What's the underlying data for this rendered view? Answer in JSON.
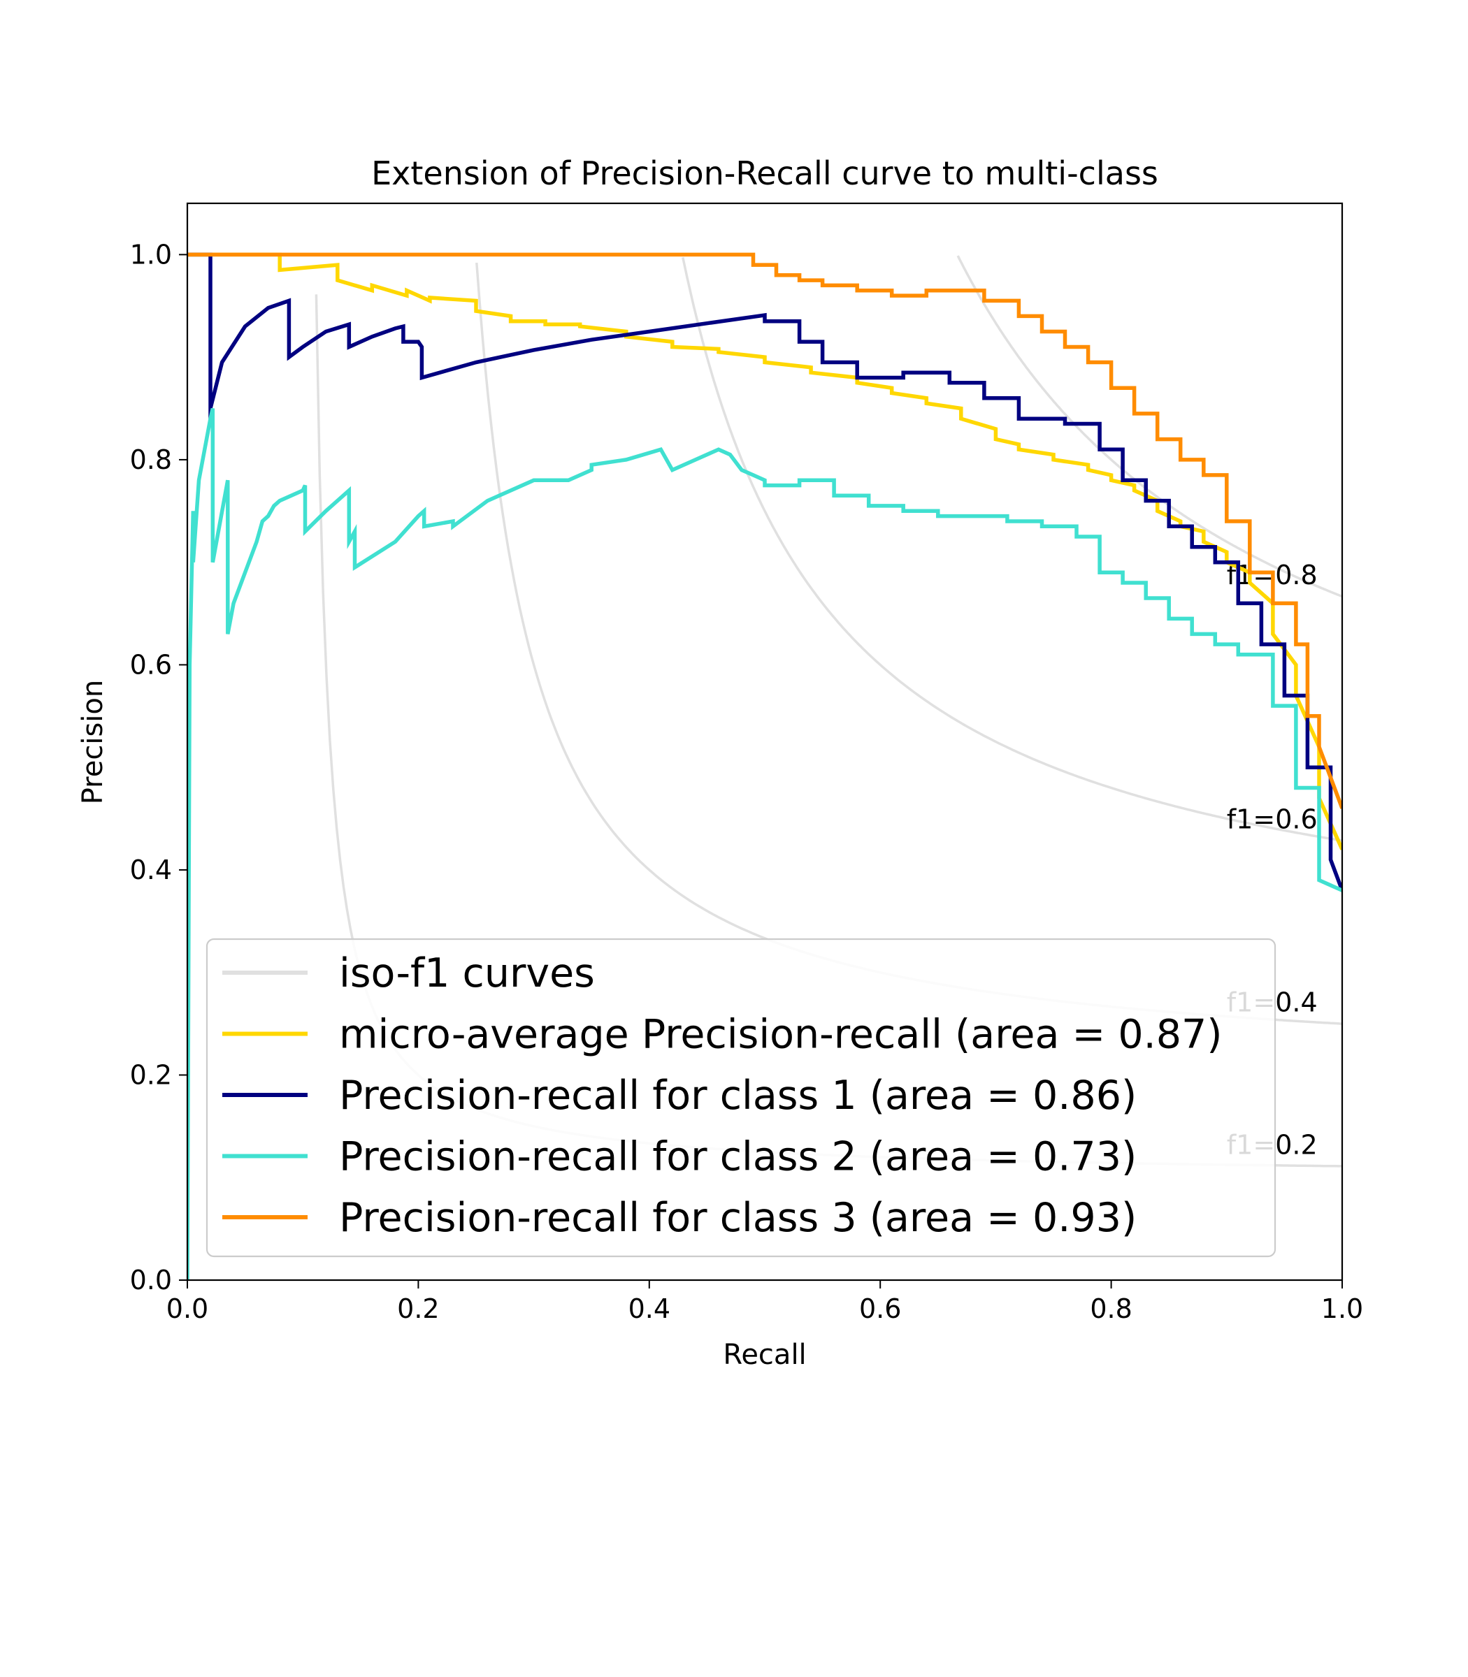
{
  "chart_data": {
    "type": "line",
    "title": "Extension of Precision-Recall curve to multi-class",
    "xlabel": "Recall",
    "ylabel": "Precision",
    "xlim": [
      0.0,
      1.0
    ],
    "ylim": [
      0.0,
      1.05
    ],
    "xticks": [
      "0.0",
      "0.2",
      "0.4",
      "0.6",
      "0.8",
      "1.0"
    ],
    "yticks": [
      "0.0",
      "0.2",
      "0.4",
      "0.6",
      "0.8",
      "1.0"
    ],
    "grid": false,
    "legend_position": "lower-left",
    "iso_f1": {
      "legend_label": "iso-f1 curves",
      "color": "#e0e0e0",
      "values": [
        0.2,
        0.4,
        0.6,
        0.8
      ],
      "labels": [
        "f1=0.2",
        "f1=0.4",
        "f1=0.6",
        "f1=0.8"
      ]
    },
    "series": [
      {
        "name": "micro-average Precision-recall (area = 0.87)",
        "color": "#ffd700",
        "x": [
          0.0,
          0.08,
          0.08,
          0.13,
          0.13,
          0.16,
          0.16,
          0.19,
          0.19,
          0.21,
          0.21,
          0.25,
          0.25,
          0.28,
          0.28,
          0.31,
          0.31,
          0.34,
          0.34,
          0.38,
          0.38,
          0.42,
          0.42,
          0.46,
          0.46,
          0.5,
          0.5,
          0.54,
          0.54,
          0.58,
          0.58,
          0.61,
          0.61,
          0.64,
          0.64,
          0.67,
          0.67,
          0.7,
          0.7,
          0.72,
          0.72,
          0.75,
          0.75,
          0.78,
          0.78,
          0.8,
          0.8,
          0.82,
          0.82,
          0.84,
          0.84,
          0.86,
          0.86,
          0.88,
          0.88,
          0.9,
          0.9,
          0.92,
          0.92,
          0.94,
          0.94,
          0.96,
          0.96,
          0.98,
          0.98,
          1.0
        ],
        "y": [
          1.0,
          1.0,
          0.985,
          0.99,
          0.975,
          0.965,
          0.97,
          0.96,
          0.965,
          0.955,
          0.958,
          0.955,
          0.945,
          0.94,
          0.935,
          0.935,
          0.932,
          0.932,
          0.93,
          0.925,
          0.92,
          0.915,
          0.91,
          0.908,
          0.905,
          0.9,
          0.895,
          0.89,
          0.885,
          0.88,
          0.875,
          0.87,
          0.865,
          0.86,
          0.855,
          0.85,
          0.84,
          0.83,
          0.82,
          0.815,
          0.81,
          0.805,
          0.8,
          0.795,
          0.79,
          0.785,
          0.78,
          0.775,
          0.77,
          0.76,
          0.75,
          0.74,
          0.735,
          0.73,
          0.72,
          0.71,
          0.7,
          0.69,
          0.68,
          0.66,
          0.63,
          0.6,
          0.57,
          0.52,
          0.47,
          0.42
        ]
      },
      {
        "name": "Precision-recall for class 1 (area = 0.86)",
        "color": "#000080",
        "x": [
          0.0,
          0.02,
          0.02,
          0.02,
          0.03,
          0.05,
          0.07,
          0.088,
          0.088,
          0.1,
          0.12,
          0.14,
          0.14,
          0.16,
          0.18,
          0.187,
          0.187,
          0.2,
          0.203,
          0.203,
          0.25,
          0.3,
          0.35,
          0.4,
          0.45,
          0.5,
          0.5,
          0.53,
          0.53,
          0.55,
          0.55,
          0.58,
          0.58,
          0.62,
          0.62,
          0.66,
          0.66,
          0.69,
          0.69,
          0.72,
          0.72,
          0.76,
          0.76,
          0.79,
          0.79,
          0.81,
          0.81,
          0.83,
          0.83,
          0.85,
          0.85,
          0.87,
          0.87,
          0.89,
          0.89,
          0.91,
          0.91,
          0.93,
          0.93,
          0.95,
          0.95,
          0.97,
          0.97,
          0.99,
          0.99,
          1.0
        ],
        "y": [
          1.0,
          1.0,
          0.84,
          0.85,
          0.895,
          0.93,
          0.948,
          0.955,
          0.9,
          0.91,
          0.925,
          0.932,
          0.91,
          0.92,
          0.928,
          0.93,
          0.915,
          0.915,
          0.91,
          0.88,
          0.895,
          0.907,
          0.917,
          0.925,
          0.933,
          0.941,
          0.935,
          0.935,
          0.915,
          0.915,
          0.895,
          0.895,
          0.88,
          0.88,
          0.885,
          0.885,
          0.875,
          0.875,
          0.86,
          0.86,
          0.84,
          0.84,
          0.835,
          0.835,
          0.81,
          0.81,
          0.78,
          0.78,
          0.76,
          0.76,
          0.735,
          0.735,
          0.715,
          0.715,
          0.7,
          0.7,
          0.66,
          0.66,
          0.62,
          0.62,
          0.57,
          0.57,
          0.5,
          0.5,
          0.41,
          0.38
        ]
      },
      {
        "name": "Precision-recall for class 2 (area = 0.73)",
        "color": "#40e0d0",
        "x": [
          0.0,
          0.002,
          0.005,
          0.005,
          0.01,
          0.02,
          0.022,
          0.022,
          0.035,
          0.035,
          0.04,
          0.05,
          0.06,
          0.065,
          0.07,
          0.075,
          0.08,
          0.1,
          0.102,
          0.102,
          0.12,
          0.13,
          0.14,
          0.14,
          0.145,
          0.145,
          0.18,
          0.2,
          0.205,
          0.205,
          0.23,
          0.23,
          0.26,
          0.3,
          0.33,
          0.35,
          0.35,
          0.38,
          0.41,
          0.42,
          0.44,
          0.46,
          0.47,
          0.48,
          0.49,
          0.5,
          0.5,
          0.53,
          0.53,
          0.56,
          0.56,
          0.59,
          0.59,
          0.62,
          0.62,
          0.65,
          0.65,
          0.68,
          0.68,
          0.71,
          0.71,
          0.74,
          0.74,
          0.77,
          0.77,
          0.79,
          0.79,
          0.81,
          0.81,
          0.83,
          0.83,
          0.85,
          0.85,
          0.87,
          0.87,
          0.89,
          0.89,
          0.91,
          0.91,
          0.94,
          0.94,
          0.96,
          0.96,
          0.98,
          0.98,
          1.0
        ],
        "y": [
          0.0,
          0.6,
          0.75,
          0.7,
          0.78,
          0.84,
          0.85,
          0.7,
          0.78,
          0.63,
          0.66,
          0.69,
          0.72,
          0.74,
          0.745,
          0.755,
          0.76,
          0.77,
          0.775,
          0.73,
          0.75,
          0.76,
          0.77,
          0.72,
          0.73,
          0.695,
          0.72,
          0.745,
          0.75,
          0.735,
          0.74,
          0.735,
          0.76,
          0.78,
          0.78,
          0.79,
          0.795,
          0.8,
          0.81,
          0.79,
          0.8,
          0.81,
          0.805,
          0.79,
          0.785,
          0.78,
          0.775,
          0.775,
          0.78,
          0.78,
          0.765,
          0.765,
          0.755,
          0.755,
          0.75,
          0.75,
          0.745,
          0.745,
          0.745,
          0.745,
          0.74,
          0.74,
          0.735,
          0.735,
          0.725,
          0.725,
          0.69,
          0.69,
          0.68,
          0.68,
          0.665,
          0.665,
          0.645,
          0.645,
          0.63,
          0.63,
          0.62,
          0.62,
          0.61,
          0.61,
          0.56,
          0.56,
          0.48,
          0.48,
          0.39,
          0.38
        ]
      },
      {
        "name": "Precision-recall for class 3 (area = 0.93)",
        "color": "#ff8c00",
        "x": [
          0.0,
          0.49,
          0.49,
          0.51,
          0.51,
          0.53,
          0.53,
          0.55,
          0.55,
          0.58,
          0.58,
          0.61,
          0.61,
          0.64,
          0.64,
          0.69,
          0.69,
          0.72,
          0.72,
          0.74,
          0.74,
          0.76,
          0.76,
          0.78,
          0.78,
          0.8,
          0.8,
          0.82,
          0.82,
          0.84,
          0.84,
          0.86,
          0.86,
          0.88,
          0.88,
          0.9,
          0.9,
          0.92,
          0.92,
          0.94,
          0.94,
          0.96,
          0.96,
          0.97,
          0.97,
          0.98,
          0.98,
          1.0
        ],
        "y": [
          1.0,
          1.0,
          0.99,
          0.99,
          0.98,
          0.98,
          0.975,
          0.975,
          0.97,
          0.97,
          0.965,
          0.965,
          0.96,
          0.96,
          0.965,
          0.965,
          0.955,
          0.955,
          0.94,
          0.94,
          0.925,
          0.925,
          0.91,
          0.91,
          0.895,
          0.895,
          0.87,
          0.87,
          0.845,
          0.845,
          0.82,
          0.82,
          0.8,
          0.8,
          0.785,
          0.785,
          0.74,
          0.74,
          0.69,
          0.69,
          0.66,
          0.66,
          0.62,
          0.62,
          0.55,
          0.55,
          0.52,
          0.46
        ]
      }
    ]
  }
}
